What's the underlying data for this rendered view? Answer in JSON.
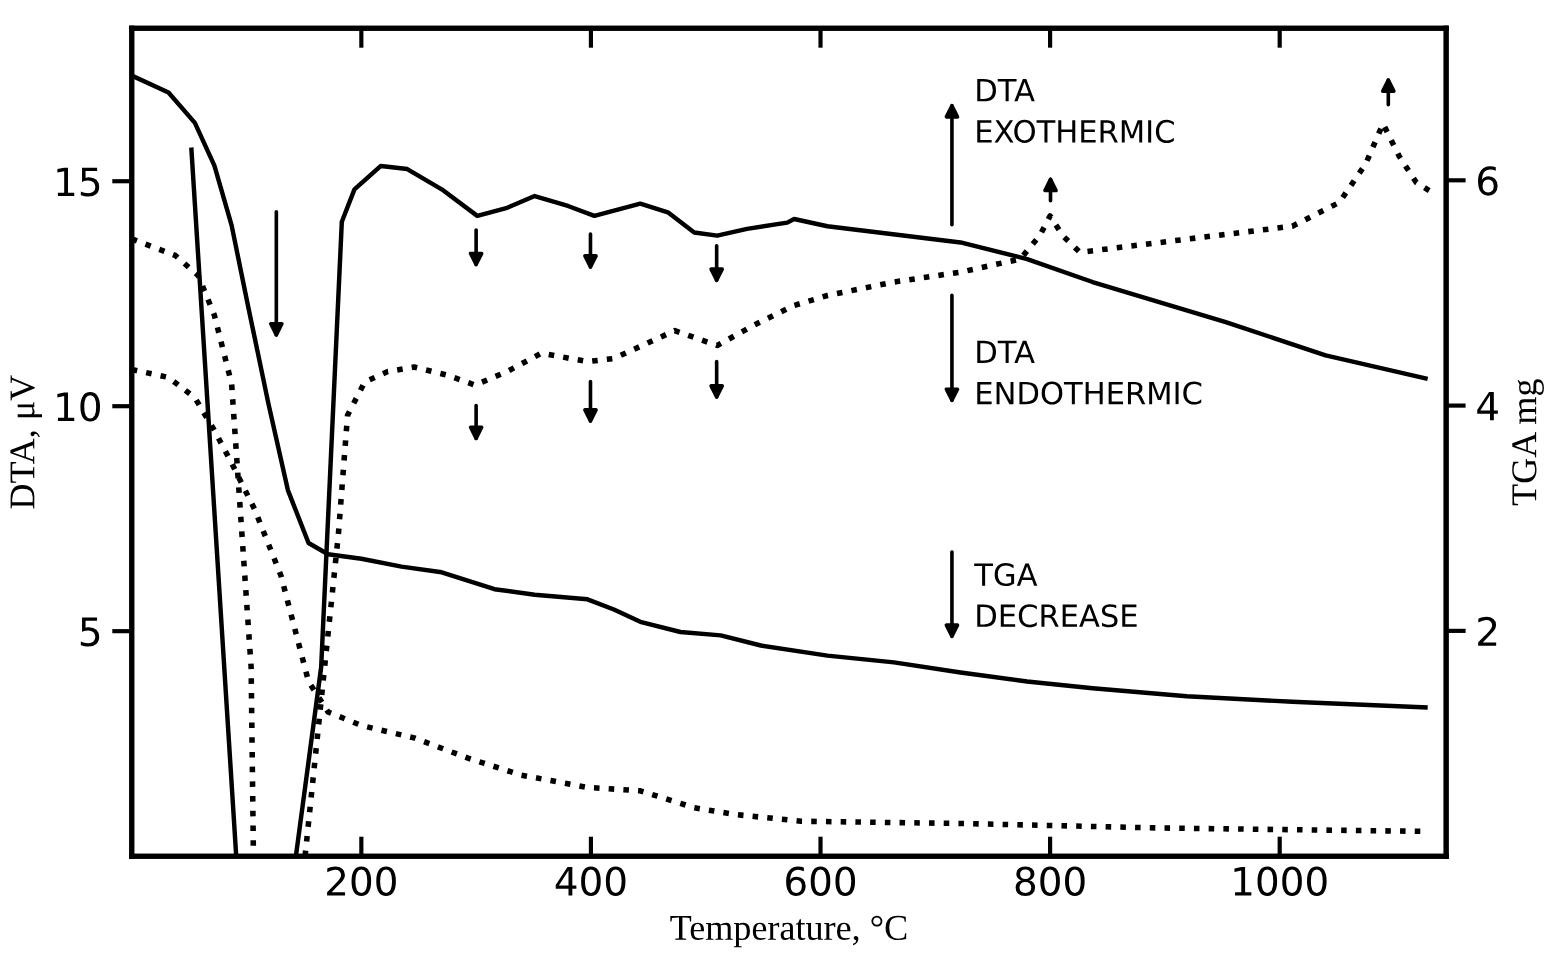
{
  "chart_data": {
    "type": "line",
    "xlabel": "Temperature, °C",
    "ylabel": "DTA, μV",
    "y2label": "TGA mg",
    "xlim": [
      0,
      1145
    ],
    "xticks": [
      200,
      400,
      600,
      800,
      1000
    ],
    "ylim": [
      0,
      18.4
    ],
    "yticks": [
      5,
      10,
      15
    ],
    "y2lim": [
      0,
      7.35
    ],
    "y2ticks": [
      2,
      4,
      6
    ],
    "grid": false,
    "legend": false,
    "marker": "none",
    "series": [
      {
        "color": "#000000",
        "line_style": "solid",
        "x": [
          52,
          91,
          117,
          143,
          165,
          183,
          194,
          217,
          240,
          270,
          301,
          327,
          351,
          380,
          403,
          443,
          467,
          490,
          510,
          536,
          571,
          577,
          606,
          722,
          780,
          837,
          953,
          1040,
          1127
        ],
        "values": [
          15.7,
          0,
          null,
          0,
          4.2,
          14.1,
          14.82,
          15.34,
          15.27,
          14.82,
          14.23,
          14.41,
          14.67,
          14.45,
          14.23,
          14.5,
          14.31,
          13.86,
          13.79,
          13.94,
          14.08,
          14.16,
          14.0,
          13.64,
          13.27,
          12.76,
          11.87,
          11.13,
          10.62
        ]
      },
      {
        "color": "#000000",
        "line_style": "dotted",
        "x": [
          0,
          38,
          58,
          72,
          87,
          96,
          104,
          106,
          128,
          151,
          165,
          180,
          188,
          203,
          223,
          246,
          275,
          299,
          327,
          357,
          397,
          420,
          473,
          510,
          542,
          577,
          606,
          664,
          722,
          774,
          791,
          800,
          811,
          826,
          896,
          1011,
          1052,
          1075,
          1090,
          1104,
          1119,
          1133
        ],
        "values": [
          13.72,
          13.35,
          12.9,
          12.02,
          10.5,
          7.15,
          4.2,
          0,
          null,
          0,
          3.46,
          7.15,
          9.8,
          10.54,
          10.77,
          10.87,
          10.69,
          10.47,
          10.77,
          11.18,
          10.99,
          11.06,
          11.68,
          11.35,
          11.8,
          12.24,
          12.46,
          12.76,
          12.98,
          13.27,
          13.79,
          14.23,
          13.79,
          13.42,
          13.64,
          14.0,
          14.53,
          15.39,
          16.28,
          15.56,
          14.97,
          14.75
        ]
      },
      {
        "color": "#000000",
        "line_style": "solid",
        "axis": "y2",
        "x": [
          0,
          32,
          55,
          72,
          87,
          101,
          119,
          136,
          154,
          171,
          200,
          235,
          270,
          316,
          351,
          397,
          420,
          443,
          478,
          513,
          548,
          606,
          664,
          722,
          780,
          837,
          919,
          1011,
          1127
        ],
        "values": [
          6.93,
          6.78,
          6.51,
          6.13,
          5.6,
          4.9,
          4.02,
          3.25,
          2.78,
          2.68,
          2.64,
          2.57,
          2.52,
          2.37,
          2.32,
          2.28,
          2.19,
          2.08,
          1.99,
          1.96,
          1.87,
          1.78,
          1.72,
          1.63,
          1.55,
          1.49,
          1.42,
          1.37,
          1.32
        ]
      },
      {
        "color": "#000000",
        "line_style": "dotted",
        "axis": "y2",
        "x": [
          0,
          32,
          55,
          72,
          87,
          107,
          130,
          154,
          171,
          200,
          246,
          293,
          339,
          397,
          443,
          490,
          525,
          583,
          722,
          896,
          1127
        ],
        "values": [
          4.32,
          4.25,
          4.07,
          3.78,
          3.49,
          3.08,
          2.49,
          1.55,
          1.28,
          1.16,
          1.05,
          0.87,
          0.72,
          0.61,
          0.58,
          0.43,
          0.37,
          0.31,
          0.29,
          0.25,
          0.22
        ]
      }
    ],
    "annotations": [
      "DTA\nEXOTHERMIC",
      "DTA\nENDOTHERMIC",
      "TGA\nDECREASE"
    ]
  }
}
